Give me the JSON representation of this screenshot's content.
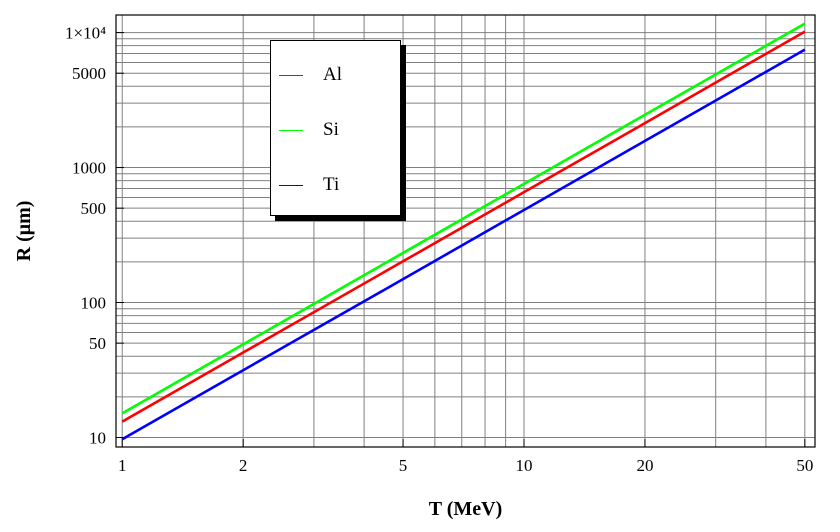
{
  "chart_data": {
    "type": "line",
    "title": "",
    "xlabel": "T (MeV)",
    "ylabel": "R (μm)",
    "xscale": "log",
    "yscale": "log",
    "xlim": [
      0.965,
      53
    ],
    "ylim": [
      8.5,
      13500
    ],
    "grid": true,
    "legend_position": "top-left",
    "x_ticks": [
      1,
      2,
      5,
      10,
      20,
      50
    ],
    "x_tick_labels": [
      "1",
      "2",
      "5",
      "10",
      "20",
      "50"
    ],
    "y_ticks": [
      10,
      50,
      100,
      500,
      1000,
      5000,
      10000
    ],
    "y_tick_labels": [
      "10",
      "50",
      "100",
      "500",
      "1000",
      "5000",
      "1×10⁴"
    ],
    "x": [
      1,
      2,
      5,
      10,
      20,
      50
    ],
    "series": [
      {
        "name": "Al",
        "color": "#ff0000",
        "values": [
          13.1,
          42.6,
          202,
          657,
          2133,
          10170
        ]
      },
      {
        "name": "Si",
        "color": "#00ff00",
        "values": [
          15.1,
          49,
          233,
          757,
          2460,
          11660
        ]
      },
      {
        "name": "Ti",
        "color": "#0000ff",
        "values": [
          9.7,
          31.5,
          149,
          485,
          1575,
          7480
        ]
      }
    ]
  }
}
